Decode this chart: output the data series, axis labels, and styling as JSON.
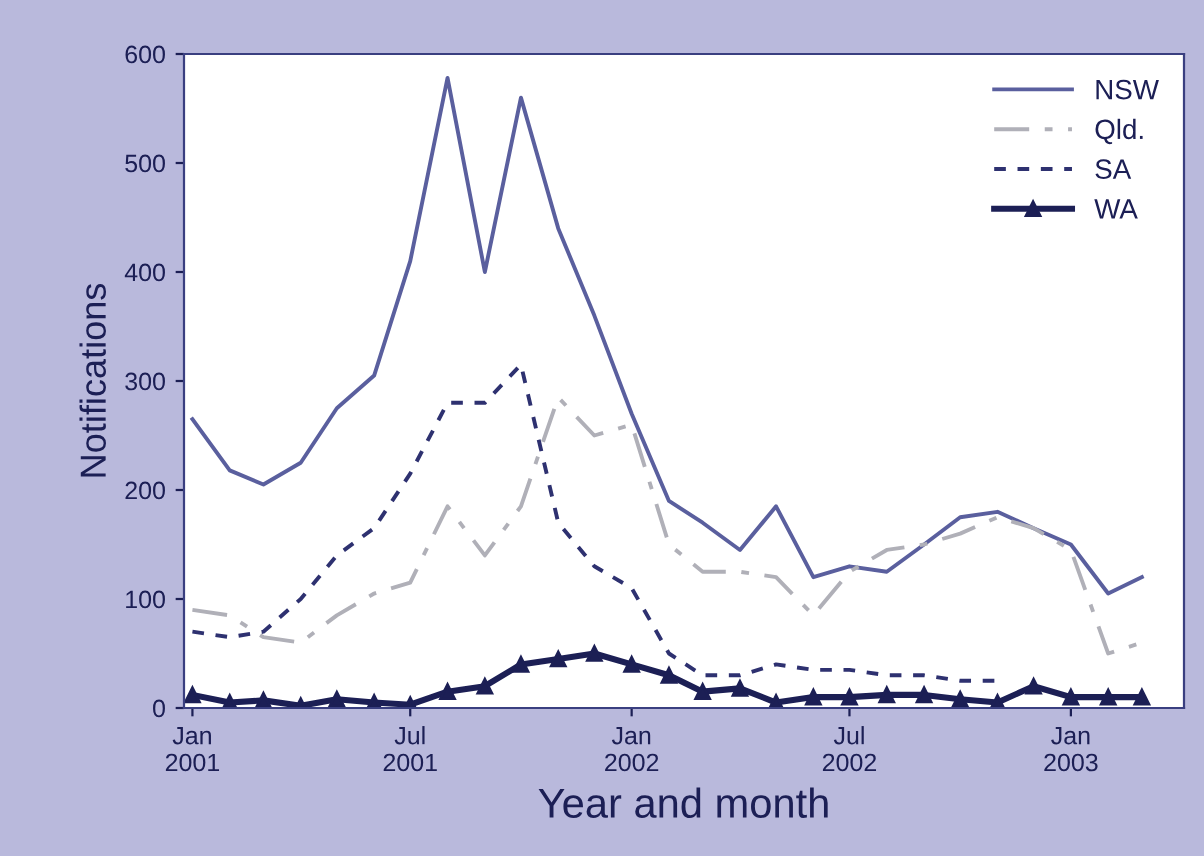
{
  "chart_data": {
    "type": "line",
    "xlabel": "Year and month",
    "ylabel": "Notifications",
    "x": [
      "2001-01",
      "2001-02",
      "2001-03",
      "2001-04",
      "2001-05",
      "2001-06",
      "2001-07",
      "2001-08",
      "2001-09",
      "2001-10",
      "2001-11",
      "2001-12",
      "2002-01",
      "2002-02",
      "2002-03",
      "2002-04",
      "2002-05",
      "2002-06",
      "2002-07",
      "2002-08",
      "2002-09",
      "2002-10",
      "2002-11",
      "2002-12",
      "2003-01",
      "2003-02",
      "2003-03"
    ],
    "series": [
      {
        "name": "NSW",
        "color": "#5a5f9e",
        "line_style": "solid",
        "marker": "none",
        "values": [
          265,
          218,
          205,
          225,
          275,
          305,
          410,
          578,
          400,
          560,
          440,
          360,
          270,
          190,
          170,
          145,
          185,
          120,
          130,
          125,
          150,
          175,
          180,
          165,
          150,
          105,
          120
        ]
      },
      {
        "name": "Qld.",
        "color": "#b0b0b8",
        "line_style": "dashed",
        "marker": "none",
        "values": [
          90,
          85,
          65,
          60,
          85,
          105,
          115,
          185,
          140,
          185,
          285,
          250,
          260,
          150,
          125,
          125,
          120,
          85,
          125,
          145,
          150,
          160,
          175,
          165,
          145,
          50,
          60
        ]
      },
      {
        "name": "SA",
        "color": "#2e3170",
        "line_style": "dotted",
        "marker": "none",
        "values": [
          70,
          65,
          70,
          100,
          140,
          165,
          215,
          280,
          280,
          315,
          170,
          130,
          110,
          50,
          30,
          30,
          40,
          35,
          35,
          30,
          30,
          25,
          25,
          null,
          null,
          null,
          null
        ]
      },
      {
        "name": "WA",
        "color": "#1c1f55",
        "line_style": "solid",
        "marker": "triangle",
        "values": [
          12,
          5,
          7,
          2,
          8,
          5,
          3,
          15,
          20,
          40,
          45,
          50,
          40,
          30,
          15,
          18,
          5,
          10,
          10,
          12,
          12,
          8,
          5,
          20,
          10,
          10,
          10
        ]
      }
    ],
    "xlim": [
      "2000-12-25",
      "2003-04-05"
    ],
    "xticks": [
      {
        "value": "2001-01",
        "label": "Jan\n2001"
      },
      {
        "value": "2001-07",
        "label": "Jul\n2001"
      },
      {
        "value": "2002-01",
        "label": "Jan\n2002"
      },
      {
        "value": "2002-07",
        "label": "Jul\n2002"
      },
      {
        "value": "2003-01",
        "label": "Jan\n2003"
      }
    ],
    "ylim": [
      0,
      600
    ],
    "yticks": [
      0,
      100,
      200,
      300,
      400,
      500,
      600
    ],
    "grid": false,
    "legend": "top right"
  }
}
